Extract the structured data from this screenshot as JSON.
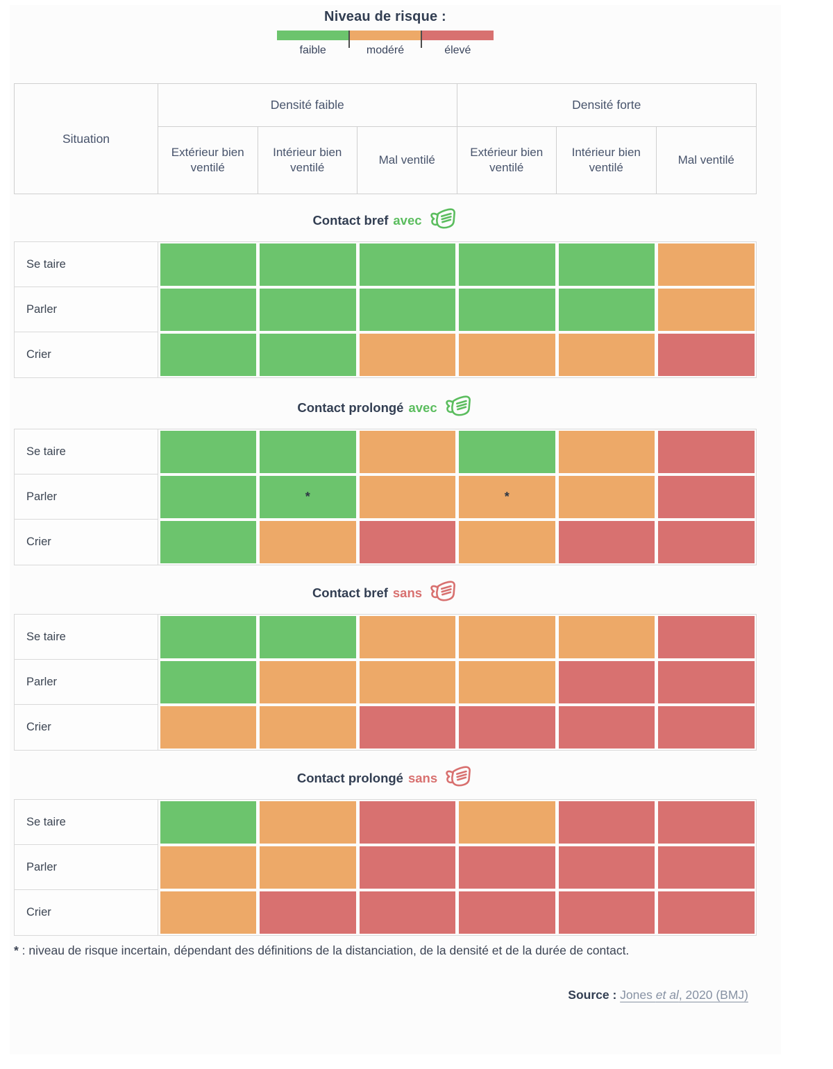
{
  "legend": {
    "title": "Niveau de risque :",
    "levels": [
      {
        "label": "faible",
        "color": "#6cc46d"
      },
      {
        "label": "modéré",
        "color": "#eda968"
      },
      {
        "label": "élevé",
        "color": "#d87170"
      }
    ]
  },
  "theme": {
    "text_dark": "#323e52",
    "avec_green": "#5bbd5e",
    "sans_red": "#d8706f",
    "border_gray": "#d9d9d9",
    "link_gray_blue": "#8792a3"
  },
  "chart_data": {
    "type": "heatmap",
    "title": "Niveau de risque :",
    "legend_labels": [
      "faible",
      "modéré",
      "élevé"
    ],
    "levels": {
      "faible": "#6cc46d",
      "modéré": "#eda968",
      "élevé": "#d87170"
    },
    "row_label_header": "Situation",
    "column_groups": [
      "Densité faible",
      "Densité forte"
    ],
    "columns": [
      "Extérieur bien ventilé",
      "Intérieur bien ventilé",
      "Mal ventilé",
      "Extérieur bien ventilé",
      "Intérieur bien ventilé",
      "Mal ventilé"
    ],
    "sections": [
      {
        "title": "Contact bref",
        "qualifier": "avec",
        "mask": "mask-with",
        "rows": [
          {
            "label": "Se taire",
            "values": [
              "faible",
              "faible",
              "faible",
              "faible",
              "faible",
              "modéré"
            ],
            "marks": [
              "",
              "",
              "",
              "",
              "",
              ""
            ]
          },
          {
            "label": "Parler",
            "values": [
              "faible",
              "faible",
              "faible",
              "faible",
              "faible",
              "modéré"
            ],
            "marks": [
              "",
              "",
              "",
              "",
              "",
              ""
            ]
          },
          {
            "label": "Crier",
            "values": [
              "faible",
              "faible",
              "modéré",
              "modéré",
              "modéré",
              "élevé"
            ],
            "marks": [
              "",
              "",
              "",
              "",
              "",
              ""
            ]
          }
        ]
      },
      {
        "title": "Contact prolongé",
        "qualifier": "avec",
        "mask": "mask-with",
        "rows": [
          {
            "label": "Se taire",
            "values": [
              "faible",
              "faible",
              "modéré",
              "faible",
              "modéré",
              "élevé"
            ],
            "marks": [
              "",
              "",
              "",
              "",
              "",
              ""
            ]
          },
          {
            "label": "Parler",
            "values": [
              "faible",
              "faible",
              "modéré",
              "modéré",
              "modéré",
              "élevé"
            ],
            "marks": [
              "",
              "*",
              "",
              "*",
              "",
              ""
            ]
          },
          {
            "label": "Crier",
            "values": [
              "faible",
              "modéré",
              "élevé",
              "modéré",
              "élevé",
              "élevé"
            ],
            "marks": [
              "",
              "",
              "",
              "",
              "",
              ""
            ]
          }
        ]
      },
      {
        "title": "Contact bref",
        "qualifier": "sans",
        "mask": "mask-without",
        "rows": [
          {
            "label": "Se taire",
            "values": [
              "faible",
              "faible",
              "modéré",
              "modéré",
              "modéré",
              "élevé"
            ],
            "marks": [
              "",
              "",
              "",
              "",
              "",
              ""
            ]
          },
          {
            "label": "Parler",
            "values": [
              "faible",
              "modéré",
              "modéré",
              "modéré",
              "élevé",
              "élevé"
            ],
            "marks": [
              "",
              "",
              "",
              "",
              "",
              ""
            ]
          },
          {
            "label": "Crier",
            "values": [
              "modéré",
              "modéré",
              "élevé",
              "élevé",
              "élevé",
              "élevé"
            ],
            "marks": [
              "",
              "",
              "",
              "",
              "",
              ""
            ]
          }
        ]
      },
      {
        "title": "Contact prolongé",
        "qualifier": "sans",
        "mask": "mask-without",
        "rows": [
          {
            "label": "Se taire",
            "values": [
              "faible",
              "modéré",
              "élevé",
              "modéré",
              "élevé",
              "élevé"
            ],
            "marks": [
              "",
              "",
              "",
              "",
              "",
              ""
            ]
          },
          {
            "label": "Parler",
            "values": [
              "modéré",
              "modéré",
              "élevé",
              "élevé",
              "élevé",
              "élevé"
            ],
            "marks": [
              "",
              "",
              "",
              "",
              "",
              ""
            ]
          },
          {
            "label": "Crier",
            "values": [
              "modéré",
              "élevé",
              "élevé",
              "élevé",
              "élevé",
              "élevé"
            ],
            "marks": [
              "",
              "",
              "",
              "",
              "",
              ""
            ]
          }
        ]
      }
    ]
  },
  "footnote": {
    "star": "*",
    "text": " : niveau de risque incertain, dépendant des définitions de la distanciation, de la densité et de la durée de contact."
  },
  "source": {
    "label": "Source :",
    "link_prefix": "Jones ",
    "link_italic": "et al",
    "link_suffix": ", 2020 (BMJ)"
  }
}
